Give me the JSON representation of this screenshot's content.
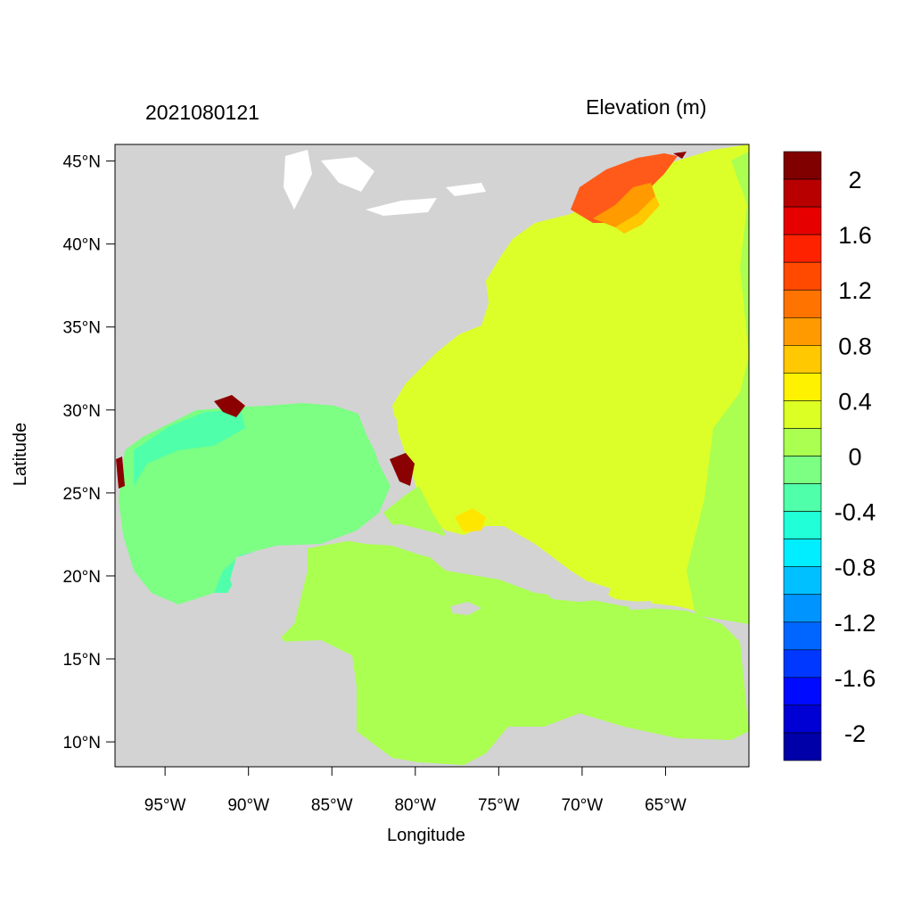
{
  "map": {
    "date_label": "2021080121",
    "title": "Elevation (m)",
    "xlabel": "Longitude",
    "ylabel": "Latitude",
    "lon_range": [
      -98,
      -60
    ],
    "lat_range": [
      8.5,
      46
    ],
    "lon_ticks": [
      "95°W",
      "90°W",
      "85°W",
      "80°W",
      "75°W",
      "70°W",
      "65°W"
    ],
    "lat_ticks": [
      "45°N",
      "40°N",
      "35°N",
      "30°N",
      "25°N",
      "20°N",
      "15°N",
      "10°N"
    ],
    "colors": {
      "land": "#d3d3d3",
      "gulf": "#7cff82",
      "caribbean": "#aaff50",
      "atlantic": "#dcff2a",
      "gulf_of_maine": "#ff5a1a",
      "surge_high": "#8b0000"
    }
  },
  "colorbar": {
    "labels": [
      "2",
      "1.6",
      "1.2",
      "0.8",
      "0.4",
      "0",
      "-0.4",
      "-0.8",
      "-1.2",
      "-1.6",
      "-2"
    ],
    "colors": [
      "#800000",
      "#b80000",
      "#e60000",
      "#ff2200",
      "#ff4a00",
      "#ff7300",
      "#ff9b00",
      "#ffc800",
      "#fff200",
      "#dcff24",
      "#aaff50",
      "#7cff82",
      "#50ffaa",
      "#20ffd8",
      "#00eeff",
      "#00c0ff",
      "#0094ff",
      "#0066ff",
      "#0038ff",
      "#000aff",
      "#0000d4",
      "#0000a8"
    ]
  }
}
